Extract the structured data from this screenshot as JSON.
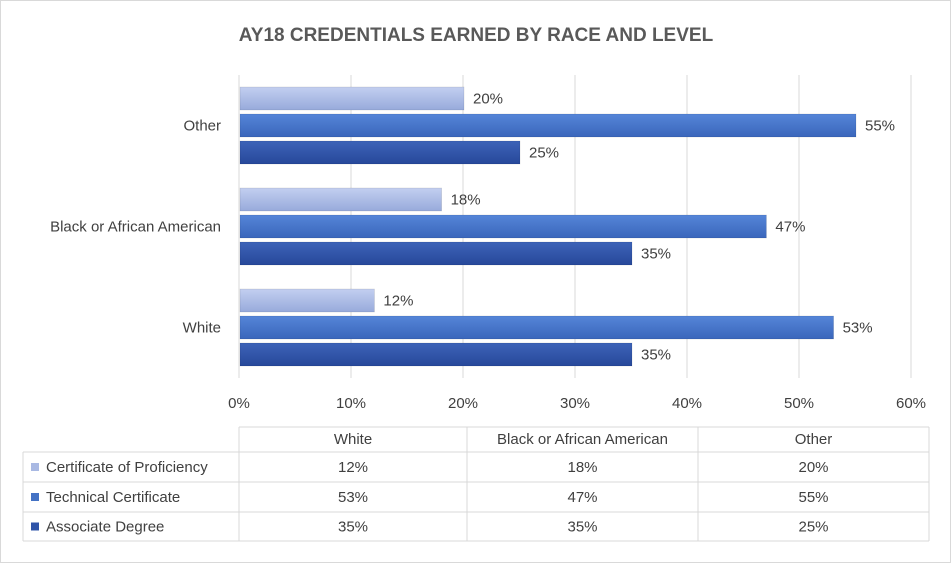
{
  "chart_data": {
    "type": "bar",
    "orientation": "horizontal",
    "title": "AY18 CREDENTIALS EARNED BY RACE AND LEVEL",
    "categories": [
      "White",
      "Black or African American",
      "Other"
    ],
    "series": [
      {
        "name": "Certificate of Proficiency",
        "values": [
          12,
          18,
          20
        ],
        "value_labels": [
          "12%",
          "18%",
          "20%"
        ],
        "color": "#a9b9e3"
      },
      {
        "name": "Technical Certificate",
        "values": [
          53,
          47,
          55
        ],
        "value_labels": [
          "53%",
          "47%",
          "55%"
        ],
        "color": "#4472c4"
      },
      {
        "name": "Associate Degree",
        "values": [
          35,
          35,
          25
        ],
        "value_labels": [
          "35%",
          "35%",
          "25%"
        ],
        "color": "#2f54a8"
      }
    ],
    "x_ticks": [
      "0%",
      "10%",
      "20%",
      "30%",
      "40%",
      "50%",
      "60%"
    ],
    "xlim": [
      0,
      60
    ],
    "grid": "vertical",
    "legend": "data-table"
  }
}
